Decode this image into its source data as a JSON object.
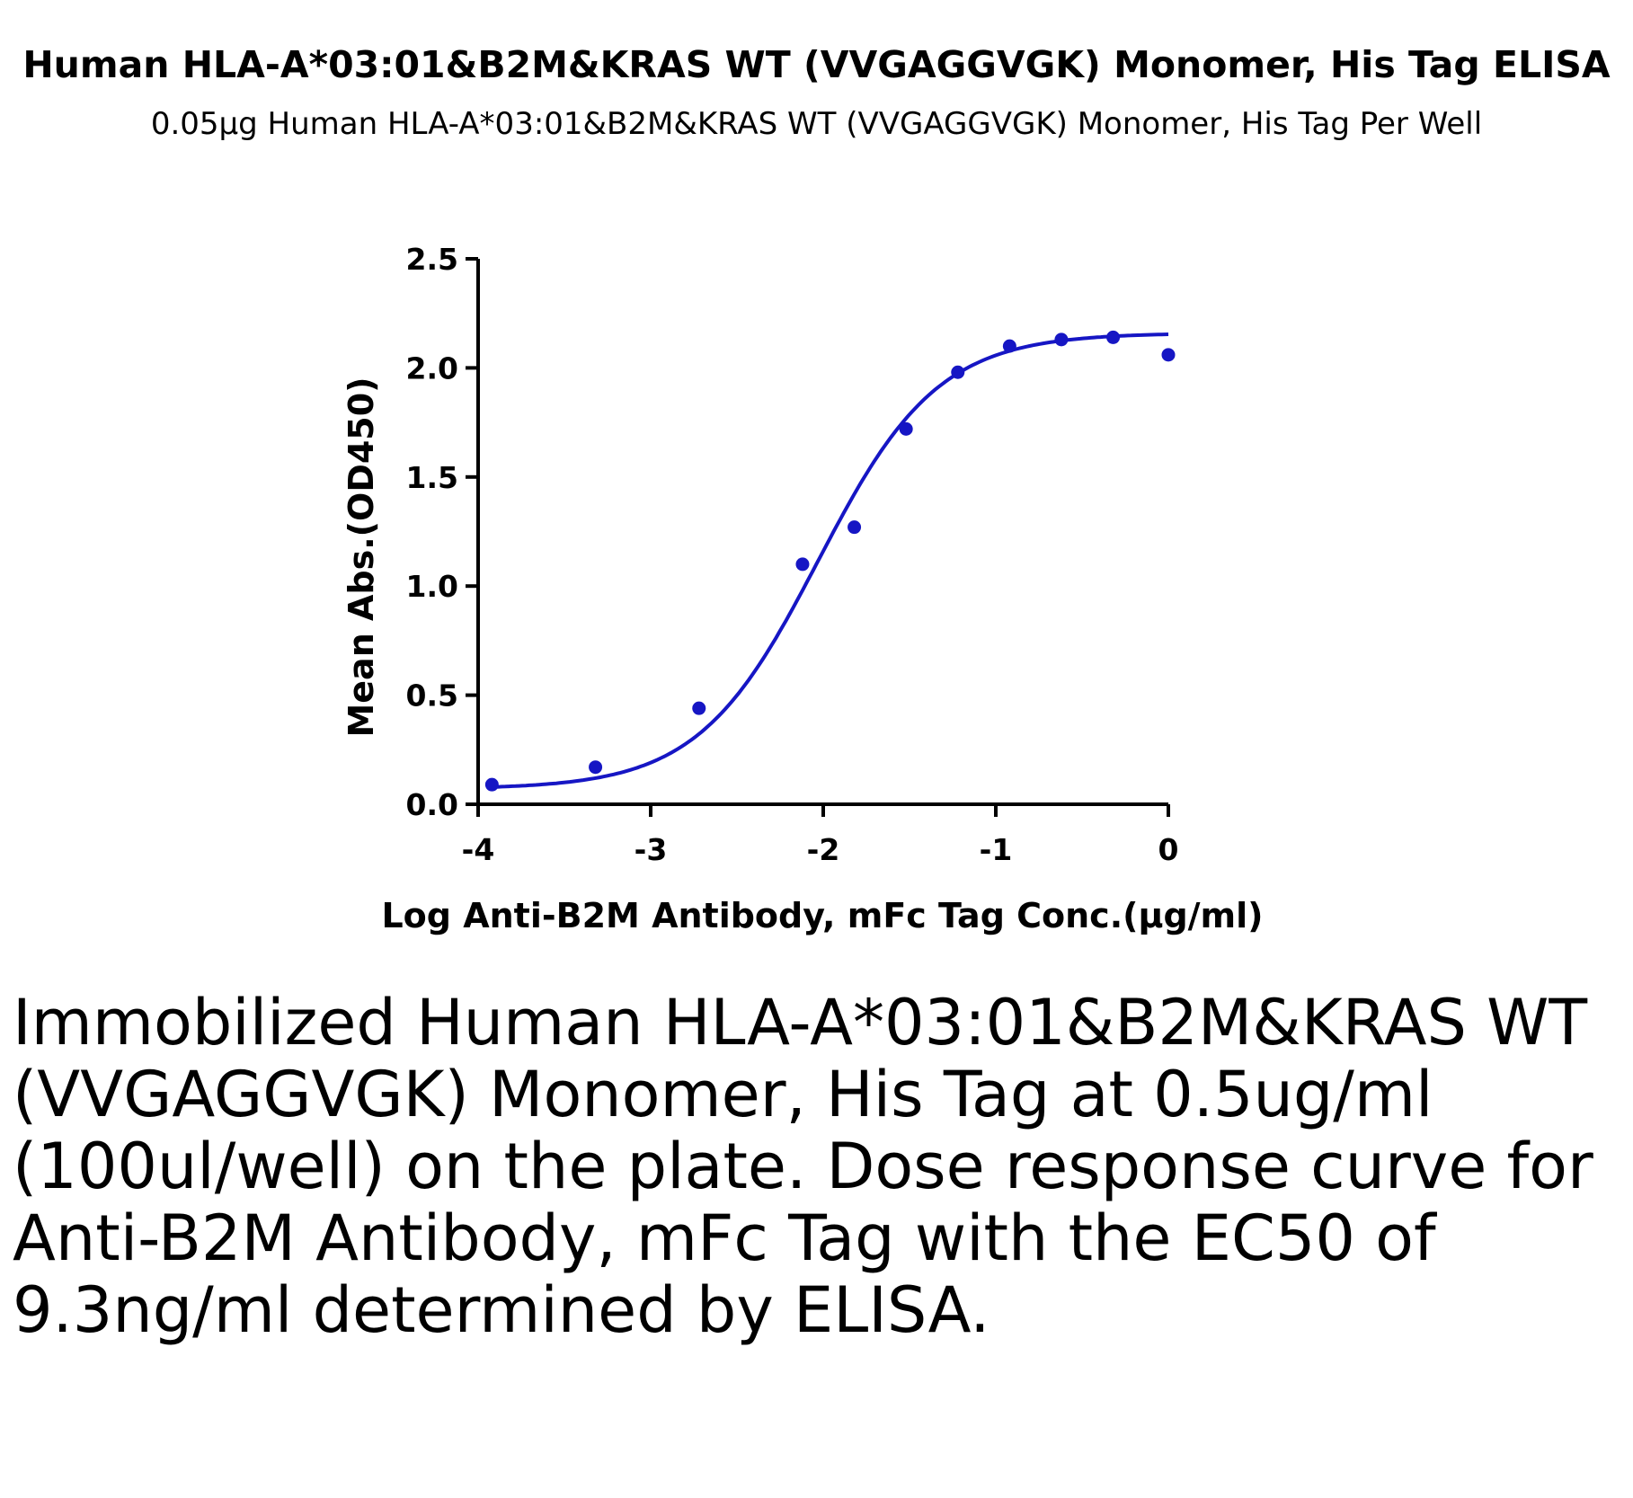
{
  "chart_data": {
    "type": "scatter",
    "title": "Human HLA-A*03:01&B2M&KRAS WT (VVGAGGVGK) Monomer, His Tag ELISA",
    "subtitle": "0.05µg Human HLA-A*03:01&B2M&KRAS WT (VVGAGGVGK) Monomer, His Tag Per Well",
    "xlabel": "Log Anti-B2M Antibody, mFc Tag Conc.(µg/ml)",
    "ylabel": "Mean Abs.(OD450)",
    "xlim": [
      -4,
      0
    ],
    "ylim": [
      0,
      2.5
    ],
    "x_ticks": [
      -4,
      -3,
      -2,
      -1,
      0
    ],
    "x_tick_labels": [
      "-4",
      "-3",
      "-2",
      "-1",
      "0"
    ],
    "y_ticks": [
      0,
      0.5,
      1,
      1.5,
      2,
      2.5
    ],
    "y_tick_labels": [
      "0.0",
      "0.5",
      "1.0",
      "1.5",
      "2.0",
      "2.5"
    ],
    "grid": false,
    "series": [
      {
        "color": "#1616c4",
        "points": [
          {
            "x": -3.92,
            "y": 0.09
          },
          {
            "x": -3.32,
            "y": 0.17
          },
          {
            "x": -2.72,
            "y": 0.44
          },
          {
            "x": -2.12,
            "y": 1.1
          },
          {
            "x": -1.82,
            "y": 1.27
          },
          {
            "x": -1.52,
            "y": 1.72
          },
          {
            "x": -1.22,
            "y": 1.98
          },
          {
            "x": -0.92,
            "y": 2.1
          },
          {
            "x": -0.62,
            "y": 2.13
          },
          {
            "x": -0.32,
            "y": 2.14
          },
          {
            "x": 0.0,
            "y": 2.06
          }
        ],
        "fit": {
          "model": "4PL",
          "bottom": 0.07,
          "top": 2.16,
          "logEC50": -2.03,
          "hill": 1.25
        }
      }
    ]
  },
  "caption": "Immobilized Human HLA-A*03:01&B2M&KRAS WT (VVGAGGVGK) Monomer, His Tag at 0.5ug/ml (100ul/well) on the plate. Dose response curve for Anti-B2M Antibody, mFc Tag with the EC50 of 9.3ng/ml determined by ELISA."
}
